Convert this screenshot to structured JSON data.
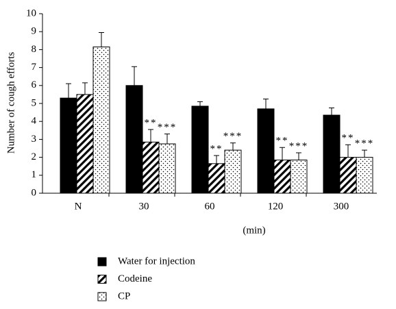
{
  "chart_data": {
    "type": "bar",
    "y_label": "Number of cough efforts",
    "x_label": "(min)",
    "categories": [
      "N",
      "30",
      "60",
      "120",
      "300"
    ],
    "series": [
      {
        "name": "Water for injection",
        "color": "#000000",
        "pattern": "solid",
        "values": [
          5.3,
          6.0,
          4.85,
          4.7,
          4.35
        ],
        "errors": [
          0.8,
          1.05,
          0.25,
          0.55,
          0.4
        ],
        "annotations": [
          null,
          null,
          null,
          null,
          null
        ]
      },
      {
        "name": "Codeine",
        "color": "#000000",
        "pattern": "hatch",
        "values": [
          5.5,
          2.85,
          1.65,
          1.85,
          2.0
        ],
        "errors": [
          0.65,
          0.7,
          0.45,
          0.7,
          0.7
        ],
        "annotations": [
          null,
          "**",
          "**",
          "**",
          "**"
        ]
      },
      {
        "name": "CP",
        "color": "#000000",
        "pattern": "dots",
        "values": [
          8.15,
          2.75,
          2.4,
          1.85,
          2.0
        ],
        "errors": [
          0.8,
          0.55,
          0.4,
          0.4,
          0.4
        ],
        "annotations": [
          null,
          "***",
          "***",
          "***",
          "***"
        ]
      }
    ],
    "ylim": [
      0,
      10
    ],
    "yticks": [
      0,
      1,
      2,
      3,
      4,
      5,
      6,
      7,
      8,
      9,
      10
    ]
  }
}
